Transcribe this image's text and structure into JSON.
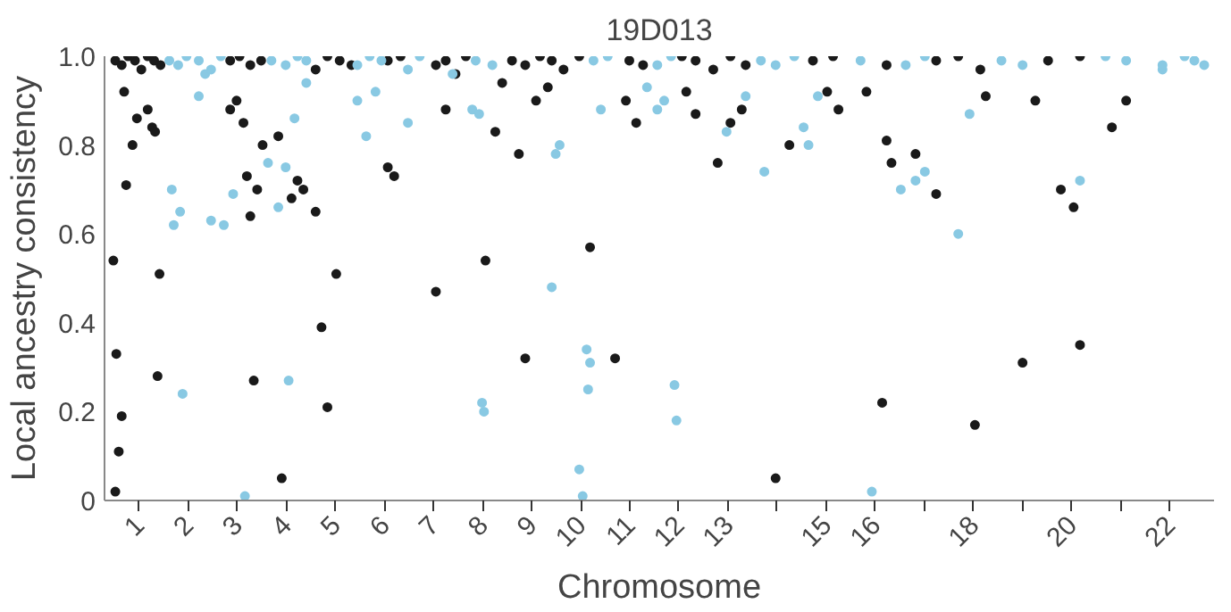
{
  "chart_data": {
    "type": "scatter",
    "title": "19D013",
    "xlabel": "Chromosome",
    "ylabel": "Local ancestry consistency",
    "marker": "circle",
    "xlim": [
      0.3,
      22.9
    ],
    "ylim": [
      0,
      1
    ],
    "xticks": [
      1,
      2,
      3,
      4,
      5,
      6,
      7,
      8,
      9,
      10,
      11,
      12,
      13,
      {
        "value": 14,
        "label": null
      },
      15,
      16,
      {
        "value": 17,
        "label": null
      },
      18,
      {
        "value": 19,
        "label": null
      },
      20,
      {
        "value": 21,
        "label": null
      },
      22
    ],
    "yticks": [
      {
        "value": 0,
        "label": "0"
      },
      0.2,
      0.4,
      0.6,
      0.8,
      {
        "value": 1,
        "label": "1.0"
      }
    ],
    "series": [
      {
        "color": "#1a1a1a",
        "x": [
          0.48,
          0.54,
          0.59,
          0.52,
          0.65,
          0.74,
          0.7,
          0.87,
          0.96,
          1.18,
          1.27,
          1.33,
          1.38,
          1.42,
          2.86,
          2.99,
          3.13,
          3.2,
          3.27,
          3.34,
          3.41,
          3.52,
          3.84,
          3.91,
          4.11,
          4.23,
          4.35,
          4.72,
          4.84,
          5.02,
          4.6,
          6.07,
          6.2,
          7.05,
          7.25,
          8.06,
          8.26,
          8.4,
          8.74,
          8.87,
          9.09,
          9.33,
          10.19,
          10.7,
          10.92,
          11.13,
          12.15,
          12.34,
          12.79,
          13.05,
          13.28,
          13.97,
          14.25,
          15.02,
          15.25,
          16.14,
          16.23,
          16.33,
          15.82,
          16.82,
          17.24,
          18.03,
          18.25,
          19.0,
          19.26,
          20.04,
          20.17,
          19.78,
          20.82,
          21.11,
          0.52,
          0.65,
          0.78,
          0.92,
          1.05,
          1.18,
          1.31,
          1.44,
          2.86,
          3.05,
          3.27,
          3.49,
          4.6,
          4.84,
          5.09,
          5.33,
          6.07,
          6.33,
          7.05,
          7.25,
          7.45,
          7.66,
          8.6,
          8.87,
          9.17,
          9.41,
          9.65,
          9.97,
          10.99,
          11.27,
          12.06,
          12.34,
          12.7,
          13.05,
          13.36,
          14.73,
          15.14,
          16.23,
          17.24,
          17.69,
          18.14,
          19.52,
          20.17
        ],
        "values": [
          0.54,
          0.33,
          0.11,
          0.02,
          0.19,
          0.71,
          0.92,
          0.8,
          0.86,
          0.88,
          0.84,
          0.83,
          0.28,
          0.51,
          0.88,
          0.9,
          0.85,
          0.73,
          0.64,
          0.27,
          0.7,
          0.8,
          0.82,
          0.05,
          0.68,
          0.72,
          0.7,
          0.39,
          0.21,
          0.51,
          0.65,
          0.75,
          0.73,
          0.47,
          0.88,
          0.54,
          0.83,
          0.94,
          0.78,
          0.32,
          0.9,
          0.93,
          0.57,
          0.32,
          0.9,
          0.85,
          0.92,
          0.87,
          0.76,
          0.85,
          0.88,
          0.05,
          0.8,
          0.92,
          0.88,
          0.22,
          0.81,
          0.76,
          0.92,
          0.78,
          0.69,
          0.17,
          0.91,
          0.31,
          0.9,
          0.66,
          0.35,
          0.7,
          0.84,
          0.9,
          0.99,
          0.98,
          1.0,
          0.99,
          0.97,
          1.0,
          0.99,
          0.98,
          0.99,
          1.0,
          0.98,
          0.99,
          0.97,
          1.0,
          0.99,
          0.98,
          0.99,
          1.0,
          0.98,
          0.99,
          0.96,
          1.0,
          0.99,
          0.98,
          1.0,
          0.99,
          0.97,
          1.0,
          0.99,
          0.98,
          1.0,
          0.99,
          0.97,
          1.0,
          0.98,
          0.99,
          1.0,
          0.98,
          0.99,
          1.0,
          0.97,
          0.99,
          1.0
        ]
      },
      {
        "color": "#89c9e3",
        "x": [
          1.67,
          1.71,
          1.84,
          1.89,
          2.22,
          2.35,
          2.47,
          2.73,
          2.92,
          3.16,
          3.63,
          3.84,
          3.99,
          4.05,
          4.17,
          4.41,
          5.45,
          5.63,
          5.82,
          6.48,
          7.39,
          7.79,
          7.93,
          7.99,
          8.03,
          9.41,
          9.49,
          9.57,
          9.97,
          10.04,
          10.12,
          10.19,
          10.15,
          10.41,
          11.35,
          11.56,
          11.7,
          11.91,
          11.95,
          12.97,
          13.36,
          13.74,
          14.54,
          14.64,
          14.83,
          15.93,
          16.52,
          16.82,
          17.01,
          17.69,
          17.92,
          20.17,
          21.85,
          1.62,
          1.8,
          1.97,
          2.22,
          2.47,
          2.67,
          3.7,
          3.99,
          4.23,
          4.41,
          5.45,
          5.7,
          5.94,
          6.48,
          6.72,
          7.86,
          8.2,
          10.26,
          10.55,
          11.56,
          11.84,
          13.67,
          13.97,
          14.35,
          15.7,
          16.62,
          17.01,
          18.57,
          19.0,
          20.69,
          21.11,
          21.85,
          22.3,
          22.5,
          22.7
        ],
        "values": [
          0.7,
          0.62,
          0.65,
          0.24,
          0.91,
          0.96,
          0.63,
          0.62,
          0.69,
          0.01,
          0.76,
          0.66,
          0.75,
          0.27,
          0.86,
          0.94,
          0.9,
          0.82,
          0.92,
          0.85,
          0.96,
          0.88,
          0.87,
          0.22,
          0.2,
          0.48,
          0.78,
          0.8,
          0.07,
          0.01,
          0.34,
          0.31,
          0.25,
          0.88,
          0.93,
          0.88,
          0.9,
          0.26,
          0.18,
          0.83,
          0.91,
          0.74,
          0.84,
          0.8,
          0.91,
          0.02,
          0.7,
          0.72,
          0.74,
          0.6,
          0.87,
          0.72,
          0.97,
          0.99,
          0.98,
          1.0,
          0.99,
          0.97,
          1.0,
          0.99,
          0.98,
          1.0,
          0.99,
          0.98,
          1.0,
          0.99,
          0.97,
          1.0,
          0.99,
          0.98,
          0.99,
          1.0,
          0.98,
          1.0,
          0.99,
          0.98,
          1.0,
          0.99,
          0.98,
          1.0,
          0.99,
          0.98,
          1.0,
          0.99,
          0.98,
          1.0,
          0.99,
          0.98
        ]
      }
    ]
  }
}
